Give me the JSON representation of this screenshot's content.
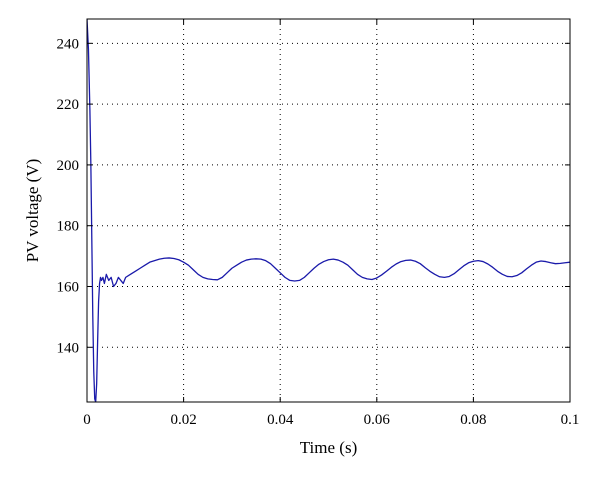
{
  "chart_data": {
    "type": "line",
    "title": "",
    "xlabel": "Time (s)",
    "ylabel": "PV voltage (V)",
    "xlim": [
      0,
      0.1
    ],
    "ylim": [
      122,
      248
    ],
    "x_ticks": [
      0,
      0.02,
      0.04,
      0.06,
      0.08,
      0.1
    ],
    "x_tick_labels": [
      "0",
      "0.02",
      "0.04",
      "0.06",
      "0.08",
      "0.1"
    ],
    "y_ticks": [
      140,
      160,
      180,
      200,
      220,
      240
    ],
    "y_tick_labels": [
      "140",
      "160",
      "180",
      "200",
      "220",
      "240"
    ],
    "grid": true,
    "legend": "none",
    "line_color": "#1a1aaa",
    "series": [
      {
        "x": [
          0,
          0.0003,
          0.0006,
          0.0008,
          0.001,
          0.0012,
          0.0014,
          0.0016,
          0.0018,
          0.002,
          0.0022,
          0.0024,
          0.0026,
          0.0028,
          0.003,
          0.0033,
          0.0036,
          0.004,
          0.0045,
          0.005,
          0.0055,
          0.006,
          0.0065,
          0.007,
          0.0075,
          0.008,
          0.009,
          0.01,
          0.011,
          0.012,
          0.013,
          0.014,
          0.015,
          0.016,
          0.017,
          0.018,
          0.019,
          0.02,
          0.021,
          0.022,
          0.023,
          0.024,
          0.025,
          0.026,
          0.027,
          0.028,
          0.029,
          0.03,
          0.031,
          0.032,
          0.033,
          0.034,
          0.035,
          0.036,
          0.037,
          0.038,
          0.039,
          0.04,
          0.041,
          0.042,
          0.043,
          0.044,
          0.045,
          0.046,
          0.047,
          0.048,
          0.049,
          0.05,
          0.051,
          0.052,
          0.053,
          0.054,
          0.055,
          0.056,
          0.057,
          0.058,
          0.059,
          0.06,
          0.061,
          0.062,
          0.063,
          0.064,
          0.065,
          0.066,
          0.067,
          0.068,
          0.069,
          0.07,
          0.071,
          0.072,
          0.073,
          0.074,
          0.075,
          0.076,
          0.077,
          0.078,
          0.079,
          0.08,
          0.081,
          0.082,
          0.083,
          0.084,
          0.085,
          0.086,
          0.087,
          0.088,
          0.089,
          0.09,
          0.091,
          0.092,
          0.093,
          0.094,
          0.095,
          0.096,
          0.097,
          0.098,
          0.099,
          0.1
        ],
        "y": [
          248,
          238,
          218,
          200,
          175,
          150,
          132,
          123,
          122,
          128,
          142,
          155,
          161,
          163,
          162,
          163,
          161,
          164,
          162,
          163,
          160,
          161,
          163,
          162,
          161,
          163,
          164,
          165,
          166,
          167,
          168,
          168.5,
          169,
          169.3,
          169.4,
          169.2,
          168.8,
          168,
          167,
          165.5,
          164,
          163,
          162.5,
          162.3,
          162.2,
          163,
          164.5,
          166,
          167,
          168,
          168.7,
          169,
          169.1,
          169,
          168.5,
          167.5,
          166,
          164.5,
          163,
          162,
          161.8,
          162,
          163,
          164.5,
          166,
          167.3,
          168.2,
          168.8,
          169,
          168.7,
          168,
          167,
          165.5,
          164,
          163,
          162.5,
          162.3,
          162.8,
          163.8,
          165,
          166.3,
          167.4,
          168.2,
          168.6,
          168.7,
          168.3,
          167.5,
          166.2,
          165,
          164,
          163.2,
          163,
          163.3,
          164.2,
          165.5,
          166.8,
          167.8,
          168.3,
          168.5,
          168.2,
          167.4,
          166.3,
          165,
          164,
          163.3,
          163.2,
          163.6,
          164.5,
          165.8,
          167,
          168,
          168.4,
          168.2,
          167.8,
          167.5,
          167.6,
          167.8,
          168
        ]
      }
    ]
  }
}
